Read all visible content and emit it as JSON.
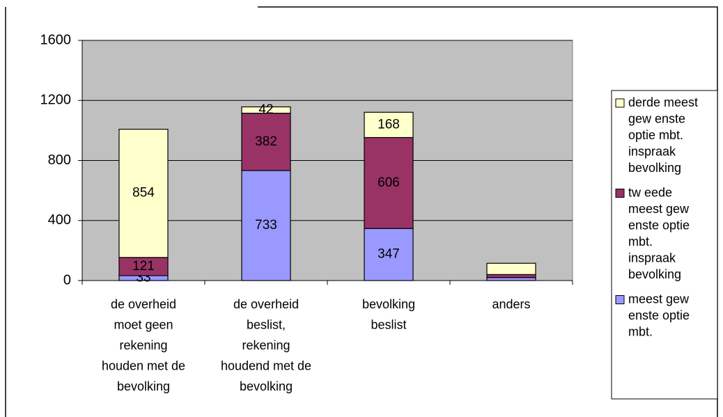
{
  "chart_data": {
    "type": "bar",
    "stacked": true,
    "categories": [
      "de overheid moet geen rekening houden met de bevolking",
      "de overheid beslist, rekening houdend met de bevolking",
      "bevolking beslist",
      "anders"
    ],
    "series": [
      {
        "name": "meest gew enste optie mbt.",
        "color": "#9999ff",
        "values": [
          33,
          733,
          347,
          20
        ],
        "value_labels": [
          33,
          733,
          347,
          null
        ]
      },
      {
        "name": "tw eede meest gew enste optie mbt. inspraak bevolking",
        "color": "#993366",
        "values": [
          121,
          382,
          606,
          20
        ],
        "value_labels": [
          121,
          382,
          606,
          null
        ]
      },
      {
        "name": "derde meest gew enste optie mbt. inspraak bevolking",
        "color": "#ffffcc",
        "values": [
          854,
          42,
          168,
          75
        ],
        "value_labels": [
          854,
          42,
          168,
          null
        ]
      }
    ],
    "ylim": [
      0,
      1600
    ],
    "yticks": [
      0,
      400,
      800,
      1200,
      1600
    ],
    "grid": true,
    "legend": "right"
  }
}
